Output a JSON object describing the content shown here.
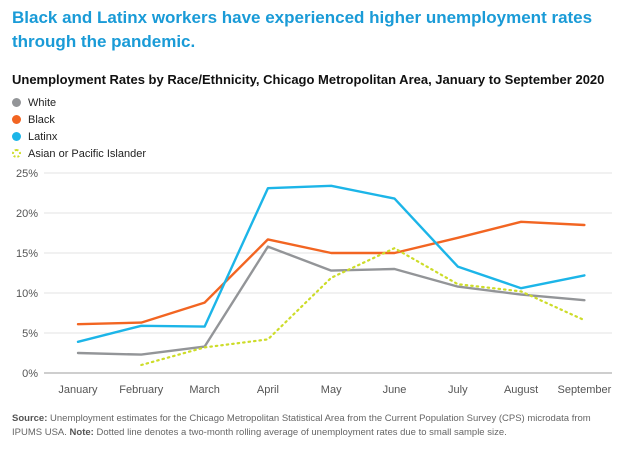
{
  "headline": "Black and Latinx workers have experienced higher unemployment rates through the pandemic.",
  "chart_data": {
    "type": "line",
    "title": "Unemployment Rates by Race/Ethnicity, Chicago Metropolitan Area, January to September 2020",
    "categories": [
      "January",
      "February",
      "March",
      "April",
      "May",
      "June",
      "July",
      "August",
      "September"
    ],
    "ylim": [
      0,
      25
    ],
    "yticks": [
      0,
      5,
      10,
      15,
      20,
      25
    ],
    "ytick_labels": [
      "0%",
      "5%",
      "10%",
      "15%",
      "20%",
      "25%"
    ],
    "grid": "horizontal",
    "legend_position": "top-left",
    "series": [
      {
        "name": "White",
        "color": "#939598",
        "dashed": false,
        "values": [
          2.5,
          2.3,
          3.3,
          15.8,
          12.8,
          13.0,
          10.8,
          9.8,
          9.1
        ]
      },
      {
        "name": "Black",
        "color": "#f26522",
        "dashed": false,
        "values": [
          6.1,
          6.3,
          8.8,
          16.7,
          15.0,
          15.0,
          16.9,
          18.9,
          18.5
        ]
      },
      {
        "name": "Latinx",
        "color": "#1cb5e8",
        "dashed": false,
        "values": [
          3.9,
          5.9,
          5.8,
          23.1,
          23.4,
          21.8,
          13.3,
          10.6,
          12.2
        ]
      },
      {
        "name": "Asian or Pacific Islander",
        "color": "#cddc29",
        "dashed": true,
        "values": [
          null,
          1.0,
          3.2,
          4.2,
          11.9,
          15.6,
          11.1,
          10.2,
          6.6
        ]
      }
    ]
  },
  "source": {
    "label": "Source:",
    "text": " Unemployment estimates for the Chicago Metropolitan Statistical Area from the Current Population Survey (CPS) microdata from IPUMS USA. ",
    "note_label": "Note:",
    "note_text": " Dotted line denotes a two-month rolling average of unemployment rates due to small sample size."
  }
}
